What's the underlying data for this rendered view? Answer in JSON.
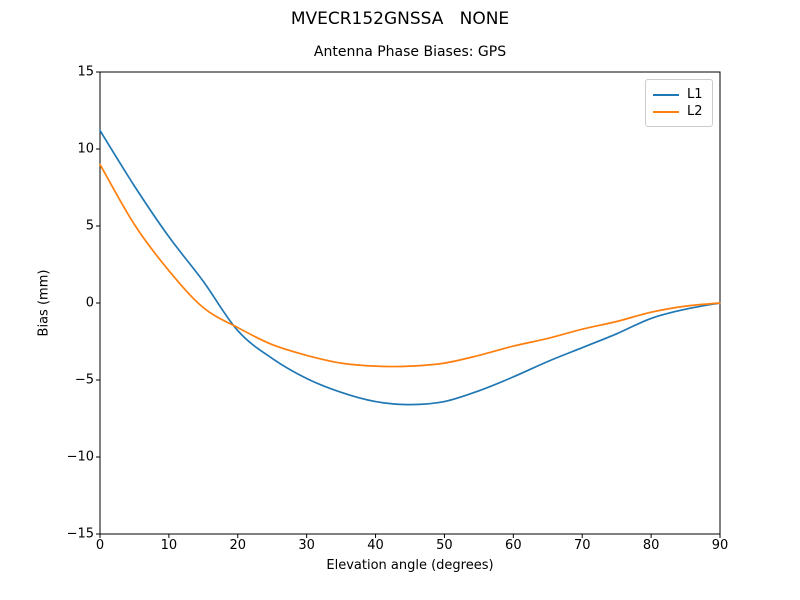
{
  "figure": {
    "suptitle": "MVECR152GNSSA   NONE"
  },
  "chart_data": {
    "type": "line",
    "title": "Antenna Phase Biases: GPS",
    "xlabel": "Elevation angle (degrees)",
    "ylabel": "Bias (mm)",
    "xlim": [
      0,
      90
    ],
    "ylim": [
      -15,
      15
    ],
    "xticks": [
      0,
      10,
      20,
      30,
      40,
      50,
      60,
      70,
      80,
      90
    ],
    "yticks": [
      -15,
      -10,
      -5,
      0,
      5,
      10,
      15
    ],
    "grid": false,
    "legend_position": "upper right",
    "x": [
      0,
      5,
      10,
      15,
      20,
      25,
      30,
      35,
      40,
      45,
      50,
      55,
      60,
      65,
      70,
      75,
      80,
      85,
      90
    ],
    "series": [
      {
        "name": "L1",
        "color": "#1f77b4",
        "values": [
          11.2,
          7.6,
          4.3,
          1.4,
          -1.8,
          -3.6,
          -4.9,
          -5.8,
          -6.4,
          -6.6,
          -6.4,
          -5.7,
          -4.8,
          -3.8,
          -2.9,
          -2.0,
          -1.0,
          -0.4,
          0.0
        ]
      },
      {
        "name": "L2",
        "color": "#ff7f0e",
        "values": [
          9.0,
          5.1,
          2.1,
          -0.3,
          -1.6,
          -2.7,
          -3.4,
          -3.9,
          -4.1,
          -4.1,
          -3.9,
          -3.4,
          -2.8,
          -2.3,
          -1.7,
          -1.2,
          -0.6,
          -0.2,
          0.0
        ]
      }
    ]
  }
}
